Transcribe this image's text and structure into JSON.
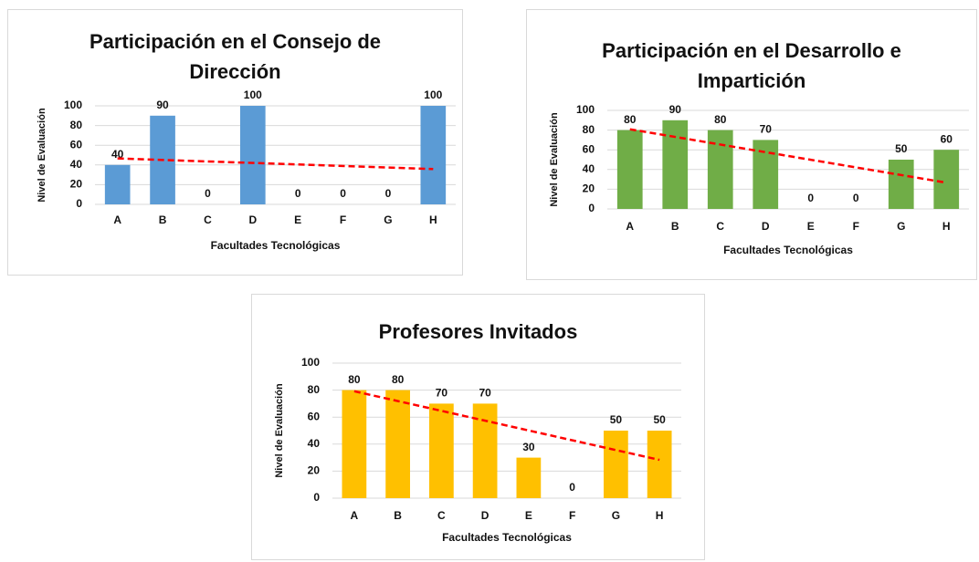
{
  "chart_data": [
    {
      "type": "bar",
      "title": "Participación  en el Consejo de Dirección",
      "categories": [
        "A",
        "B",
        "C",
        "D",
        "E",
        "F",
        "G",
        "H"
      ],
      "values": [
        40,
        90,
        0,
        100,
        0,
        0,
        0,
        100
      ],
      "color": "#5b9bd5",
      "ylim": [
        0,
        100
      ],
      "yticks": [
        0,
        20,
        40,
        60,
        80,
        100
      ],
      "grid": true,
      "x_label": "Facultades Tecnológicas",
      "y_label": "Nivel de Evaluación",
      "trendline": "linear",
      "trendline_color": "#ff0000"
    },
    {
      "type": "bar",
      "title": "Participación  en el Desarrollo e Impartición",
      "categories": [
        "A",
        "B",
        "C",
        "D",
        "E",
        "F",
        "G",
        "H"
      ],
      "values": [
        80,
        90,
        80,
        70,
        0,
        0,
        50,
        60
      ],
      "color": "#70ad47",
      "ylim": [
        0,
        100
      ],
      "yticks": [
        0,
        20,
        40,
        60,
        80,
        100
      ],
      "grid": true,
      "x_label": "Facultades Tecnológicas",
      "y_label": "Nivel de Evaluación",
      "trendline": "linear",
      "trendline_color": "#ff0000"
    },
    {
      "type": "bar",
      "title": "Profesores  Invitados",
      "categories": [
        "A",
        "B",
        "C",
        "D",
        "E",
        "F",
        "G",
        "H"
      ],
      "values": [
        80,
        80,
        70,
        70,
        30,
        0,
        50,
        50
      ],
      "color": "#ffc000",
      "ylim": [
        0,
        100
      ],
      "yticks": [
        0,
        20,
        40,
        60,
        80,
        100
      ],
      "grid": true,
      "x_label": "Facultades Tecnológicas",
      "y_label": "Nivel de Evaluación",
      "trendline": "linear",
      "trendline_color": "#ff0000"
    }
  ]
}
